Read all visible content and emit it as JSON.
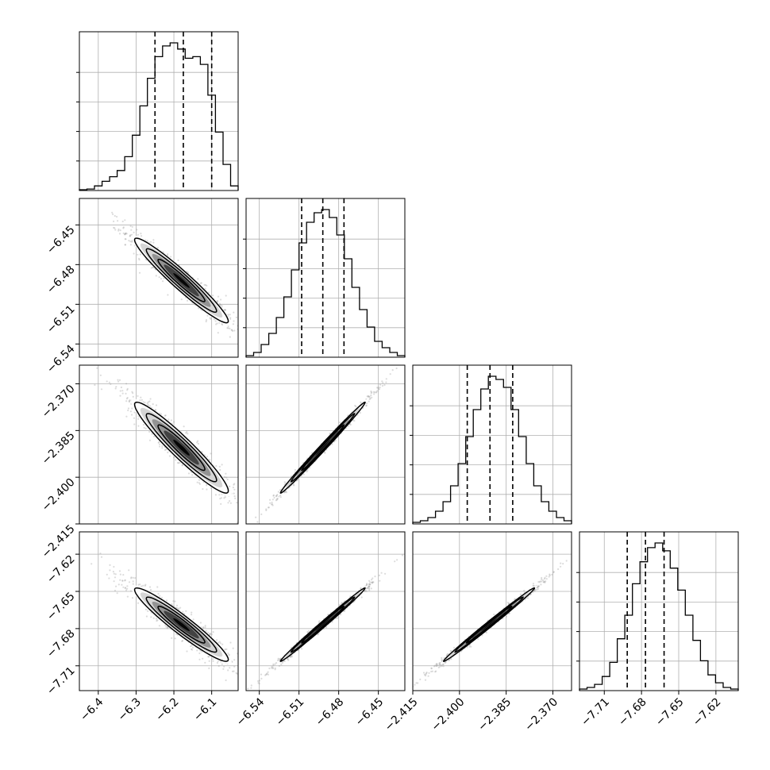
{
  "chart_data": {
    "type": "corner",
    "grid": true,
    "quantiles": [
      0.16,
      0.5,
      0.84
    ],
    "parameters": [
      {
        "tick_labels": [
          "−6.4",
          "−6.3",
          "−6.2",
          "−6.1"
        ],
        "tick_values": [
          -6.4,
          -6.3,
          -6.2,
          -6.1
        ],
        "range": [
          -6.45,
          -6.03
        ],
        "quantile_values": [
          -6.25,
          -6.175,
          -6.1
        ],
        "histogram": [
          0.5,
          1,
          3,
          6,
          9,
          13,
          22,
          36,
          55,
          73,
          87,
          94,
          96,
          92,
          86,
          87,
          82,
          62,
          38,
          17,
          3
        ]
      },
      {
        "tick_labels": [
          "−6.54",
          "−6.51",
          "−6.48",
          "−6.45"
        ],
        "tick_values": [
          -6.54,
          -6.51,
          -6.48,
          -6.45
        ],
        "range": [
          -6.55,
          -6.43
        ],
        "quantile_values": [
          -6.508,
          -6.492,
          -6.476
        ],
        "histogram": [
          1,
          3,
          8,
          15,
          25,
          38,
          55,
          72,
          85,
          91,
          93,
          88,
          77,
          62,
          44,
          30,
          19,
          10,
          6,
          3,
          1
        ]
      },
      {
        "tick_labels": [
          "−2.415",
          "−2.400",
          "−2.385",
          "−2.370"
        ],
        "tick_values": [
          -2.415,
          -2.4,
          -2.385,
          -2.37
        ],
        "range": [
          -2.415,
          -2.364
        ],
        "quantile_values": [
          -2.3975,
          -2.3902,
          -2.3829
        ],
        "histogram": [
          1,
          2,
          4,
          8,
          14,
          24,
          38,
          55,
          72,
          85,
          93,
          91,
          86,
          72,
          55,
          38,
          24,
          14,
          8,
          4,
          2
        ]
      },
      {
        "tick_labels": [
          "−7.71",
          "−7.68",
          "−7.65",
          "−7.62"
        ],
        "tick_values": [
          -7.71,
          -7.68,
          -7.65,
          -7.62
        ],
        "range": [
          -7.73,
          -7.602
        ],
        "quantile_values": [
          -7.6915,
          -7.6768,
          -7.6618
        ],
        "histogram": [
          1,
          2,
          4,
          9,
          18,
          33,
          48,
          68,
          82,
          91,
          94,
          89,
          78,
          64,
          48,
          32,
          19,
          10,
          5,
          2,
          1
        ]
      }
    ],
    "pairs": [
      {
        "row": 1,
        "col": 0,
        "mean": [
          -6.18,
          -6.492
        ],
        "sd": [
          0.062,
          0.016
        ],
        "corr": -0.96
      },
      {
        "row": 2,
        "col": 0,
        "mean": [
          -6.18,
          -2.3905
        ],
        "sd": [
          0.062,
          0.0073
        ],
        "corr": -0.95
      },
      {
        "row": 2,
        "col": 1,
        "mean": [
          -6.492,
          -2.3905
        ],
        "sd": [
          0.016,
          0.0073
        ],
        "corr": 0.995
      },
      {
        "row": 3,
        "col": 0,
        "mean": [
          -6.18,
          -7.6768
        ],
        "sd": [
          0.062,
          0.0148
        ],
        "corr": -0.95
      },
      {
        "row": 3,
        "col": 1,
        "mean": [
          -6.492,
          -7.6768
        ],
        "sd": [
          0.016,
          0.0148
        ],
        "corr": 0.995
      },
      {
        "row": 3,
        "col": 2,
        "mean": [
          -2.3905,
          -7.6768
        ],
        "sd": [
          0.0073,
          0.0148
        ],
        "corr": 0.995
      }
    ],
    "colors": {
      "line": "#000000",
      "grid": "#b0b0b0",
      "scatter": "#9a9a9a",
      "density_low": "#ffffff",
      "density_high": "#000000"
    }
  }
}
